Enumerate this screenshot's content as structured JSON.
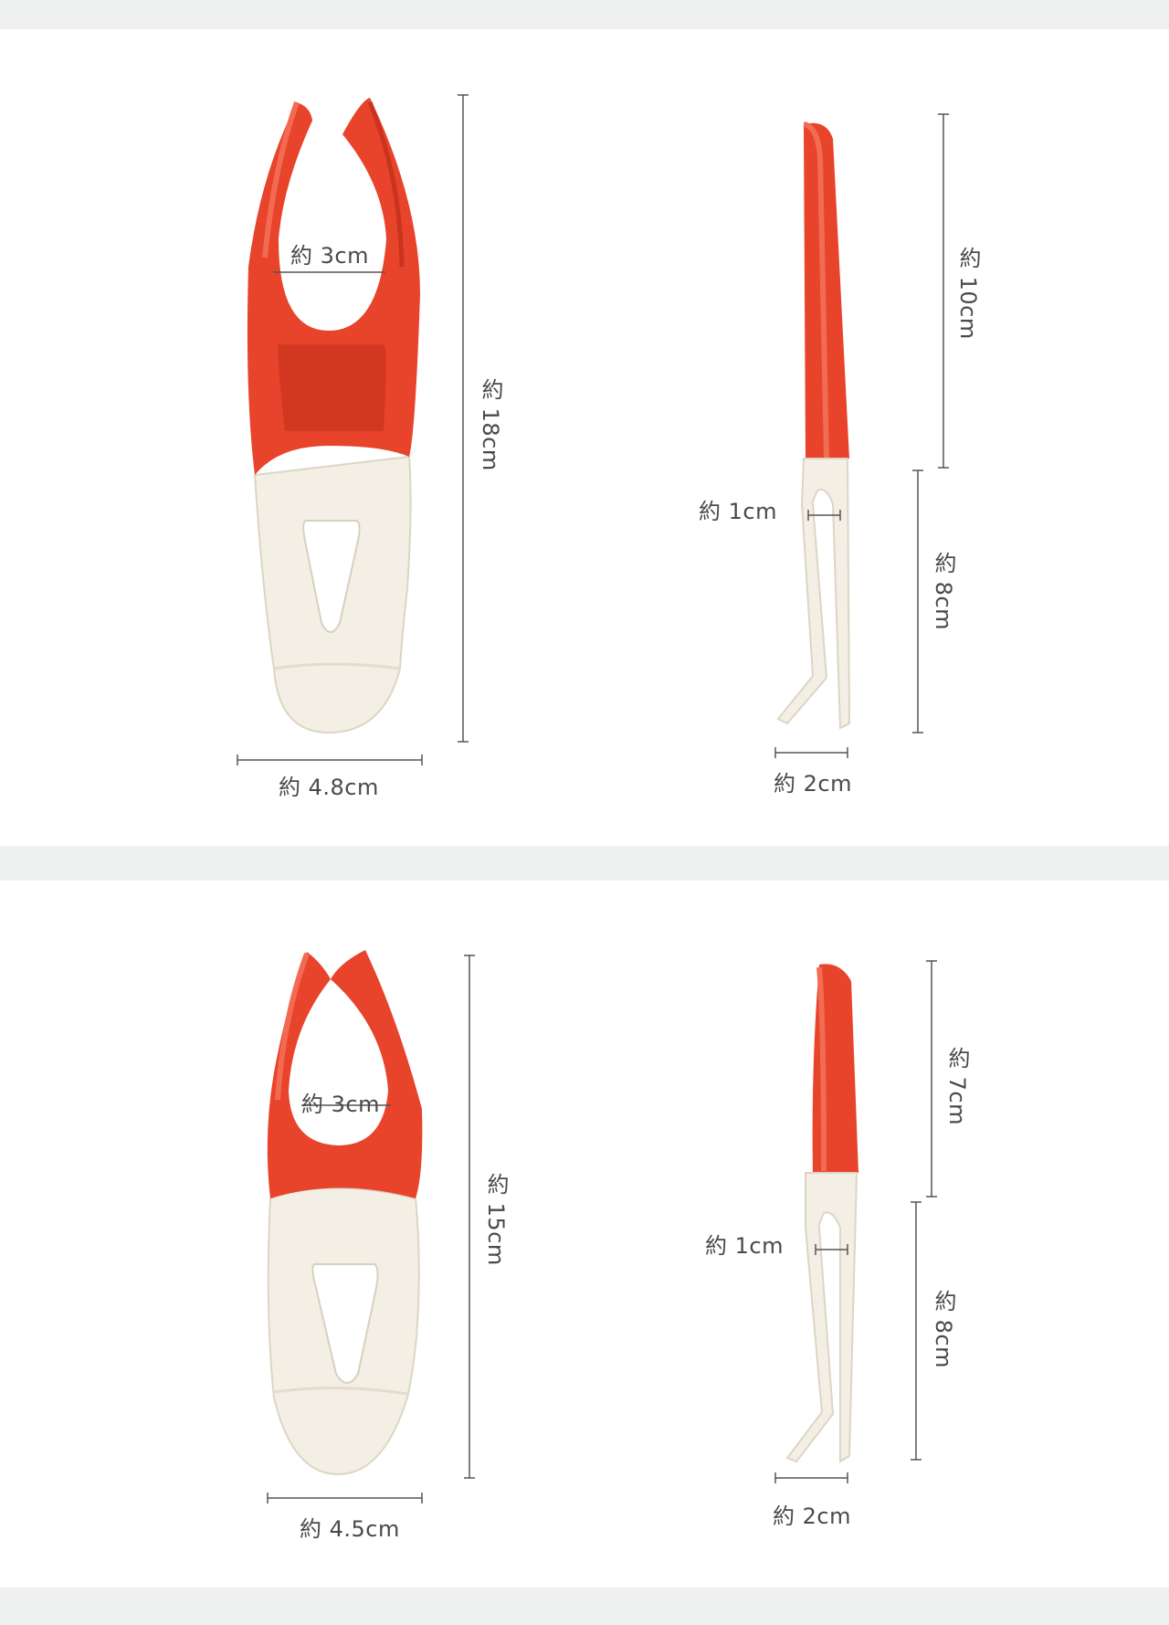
{
  "colors": {
    "band": "#eef1ef",
    "red": "#e8432b",
    "red_dark": "#c9341f",
    "cream": "#f4efe4",
    "line": "#555555"
  },
  "large_model": {
    "front": {
      "opening": "約 3cm",
      "height": "約 18cm",
      "width": "約 4.8cm"
    },
    "side": {
      "upper": "約 10cm",
      "gap": "約 1cm",
      "lower": "約 8cm",
      "depth": "約 2cm"
    }
  },
  "small_model": {
    "front": {
      "opening": "約 3cm",
      "height": "約 15cm",
      "width": "約 4.5cm"
    },
    "side": {
      "upper": "約 7cm",
      "gap": "約 1cm",
      "lower": "約 8cm",
      "depth": "約 2cm"
    }
  }
}
